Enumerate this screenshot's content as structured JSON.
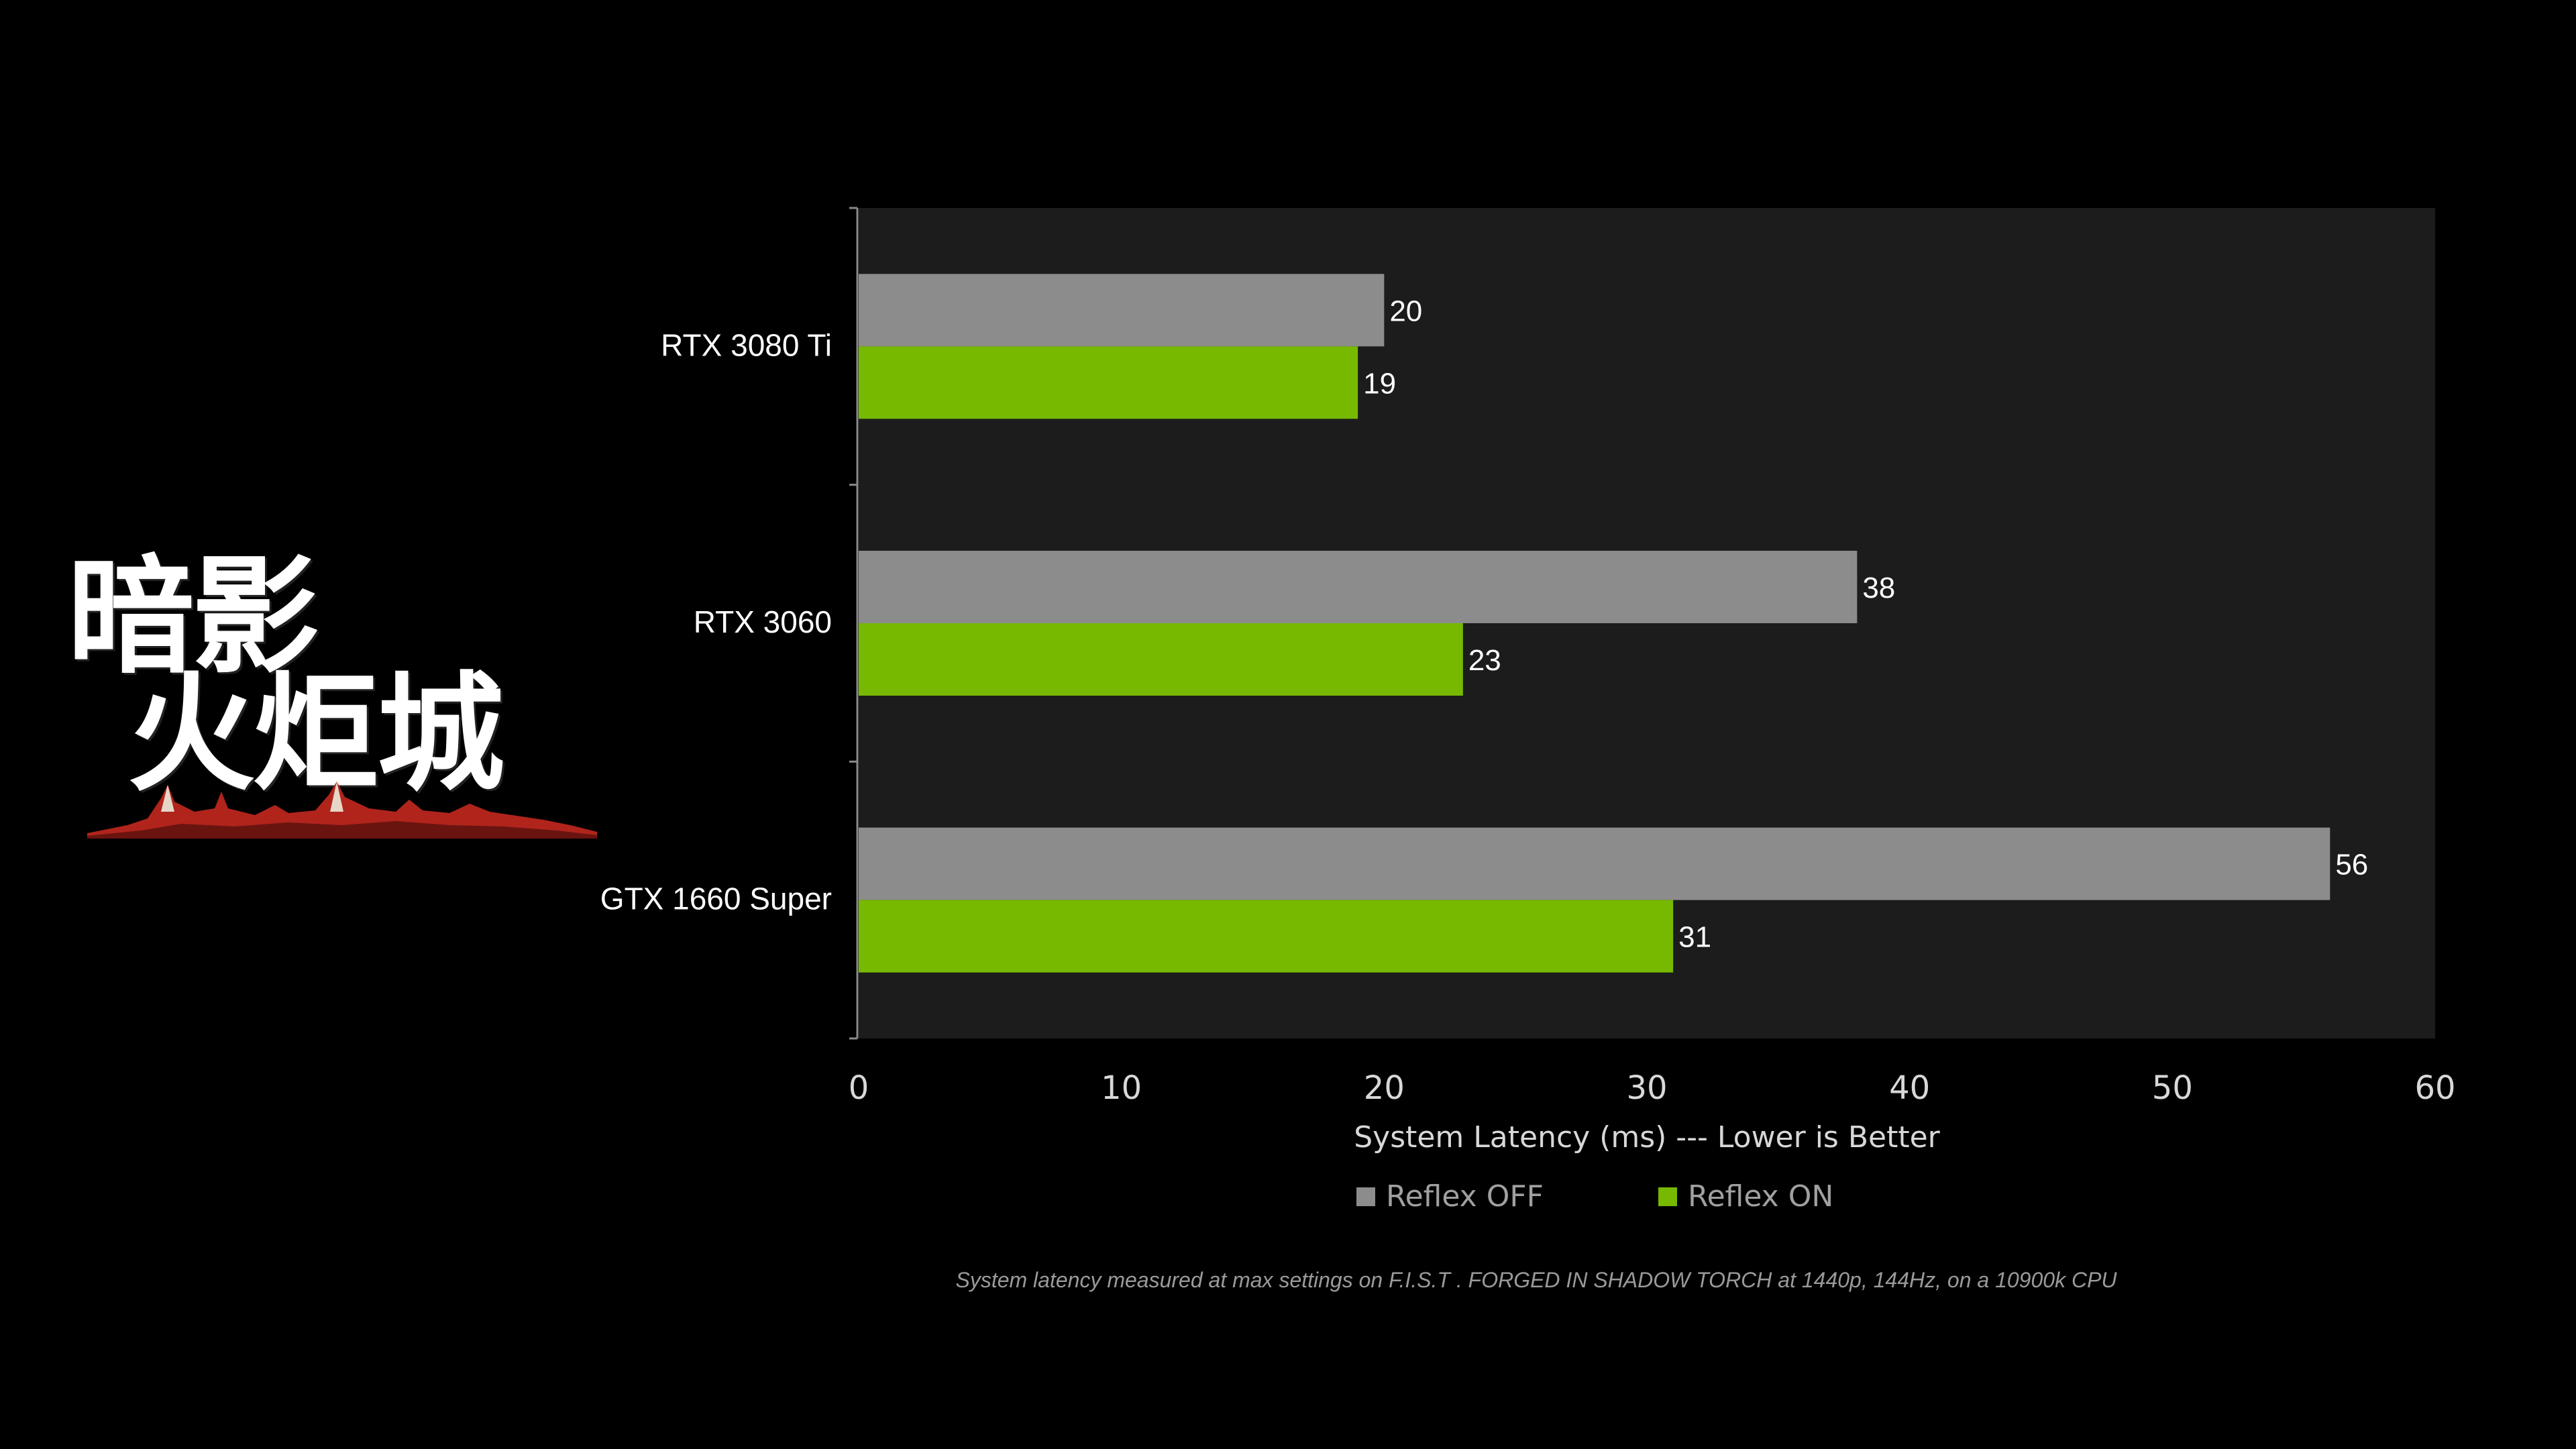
{
  "logo": {
    "line1": "暗影",
    "line2": "火炬城"
  },
  "footnote": "System latency measured at max settings on F.I.S.T . FORGED IN SHADOW TORCH at 1440p, 144Hz, on a 10900k CPU",
  "colors": {
    "background": "#000000",
    "plot_background": "#1c1c1c",
    "reflex_off": "#8c8c8c",
    "reflex_on": "#76b900",
    "text": "#ffffff",
    "axis_text": "#d8d8d8",
    "legend_text": "#a0a0a0"
  },
  "chart_data": {
    "type": "bar",
    "orientation": "horizontal",
    "categories": [
      "RTX 3080 Ti",
      "RTX 3060",
      "GTX 1660 Super"
    ],
    "series": [
      {
        "name": "Reflex OFF",
        "values": [
          20,
          38,
          56
        ]
      },
      {
        "name": "Reflex ON",
        "values": [
          19,
          23,
          31
        ]
      }
    ],
    "xlabel": "System Latency (ms) --- Lower is Better",
    "xlim": [
      0,
      60
    ],
    "xticks": [
      0,
      10,
      20,
      30,
      40,
      50,
      60
    ],
    "legend_position": "bottom",
    "grid": false
  }
}
